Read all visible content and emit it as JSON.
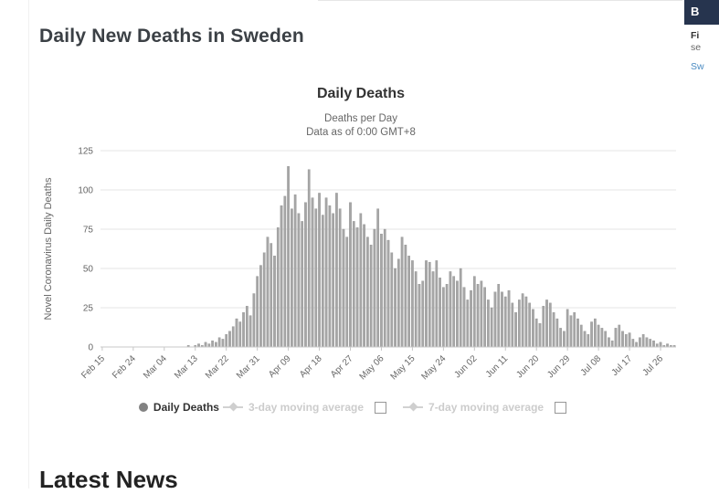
{
  "page": {
    "heading": "Daily New Deaths in Sweden",
    "latest_news_heading": "Latest News"
  },
  "promo": {
    "header_text": "B",
    "line1": "Fi",
    "line2": "se",
    "link_text": "Sw"
  },
  "chart_data": {
    "type": "bar",
    "title": "Daily Deaths",
    "subtitle": [
      "Deaths per Day",
      "Data as of 0:00 GMT+8"
    ],
    "series_name": "Daily Deaths",
    "ylabel": "Novel Coronavirus Daily Deaths",
    "ylim": [
      0,
      125
    ],
    "yticks": [
      0,
      25,
      50,
      75,
      100,
      125
    ],
    "x_tick_labels": [
      "Feb 15",
      "Feb 24",
      "Mar 04",
      "Mar 13",
      "Mar 22",
      "Mar 31",
      "Apr 09",
      "Apr 18",
      "Apr 27",
      "May 06",
      "May 15",
      "May 24",
      "Jun 02",
      "Jun 11",
      "Jun 20",
      "Jun 29",
      "Jul 08",
      "Jul 17",
      "Jul 26"
    ],
    "x_tick_interval": 9,
    "grid_on": true,
    "legend_position": "bottom",
    "bar_color": "#a6a6a6",
    "bar_border": "#8e8e8e",
    "grid_color": "#e6e6e6",
    "axis_line_color": "#c8c8c8",
    "values": [
      0,
      0,
      0,
      0,
      0,
      0,
      0,
      0,
      0,
      0,
      0,
      0,
      0,
      0,
      0,
      0,
      0,
      0,
      0,
      0,
      0,
      0,
      0,
      0,
      0,
      1,
      0,
      1,
      2,
      1,
      3,
      2,
      4,
      3,
      6,
      5,
      8,
      10,
      13,
      18,
      16,
      22,
      26,
      20,
      34,
      45,
      52,
      60,
      70,
      66,
      58,
      76,
      90,
      96,
      115,
      88,
      97,
      85,
      80,
      92,
      113,
      95,
      88,
      98,
      84,
      95,
      90,
      85,
      98,
      88,
      75,
      70,
      92,
      80,
      76,
      85,
      78,
      70,
      65,
      75,
      88,
      72,
      75,
      68,
      60,
      50,
      56,
      70,
      65,
      58,
      55,
      48,
      40,
      42,
      55,
      54,
      48,
      55,
      44,
      38,
      40,
      48,
      45,
      42,
      50,
      38,
      30,
      36,
      45,
      40,
      42,
      38,
      30,
      25,
      35,
      40,
      35,
      32,
      36,
      28,
      22,
      30,
      34,
      32,
      28,
      24,
      18,
      15,
      26,
      30,
      28,
      22,
      18,
      12,
      10,
      24,
      20,
      22,
      18,
      14,
      10,
      8,
      16,
      18,
      14,
      12,
      10,
      6,
      4,
      12,
      14,
      10,
      8,
      9,
      5,
      3,
      6,
      8,
      6,
      5,
      4,
      2,
      3,
      1,
      2,
      1,
      1
    ]
  },
  "legend": {
    "items": [
      {
        "label": "Daily Deaths",
        "marker": "circle",
        "enabled": true
      },
      {
        "label": "3-day moving average",
        "marker": "diamond-line",
        "enabled": false,
        "has_checkbox": true
      },
      {
        "label": "7-day moving average",
        "marker": "diamond-line",
        "enabled": false,
        "has_checkbox": true
      }
    ]
  }
}
